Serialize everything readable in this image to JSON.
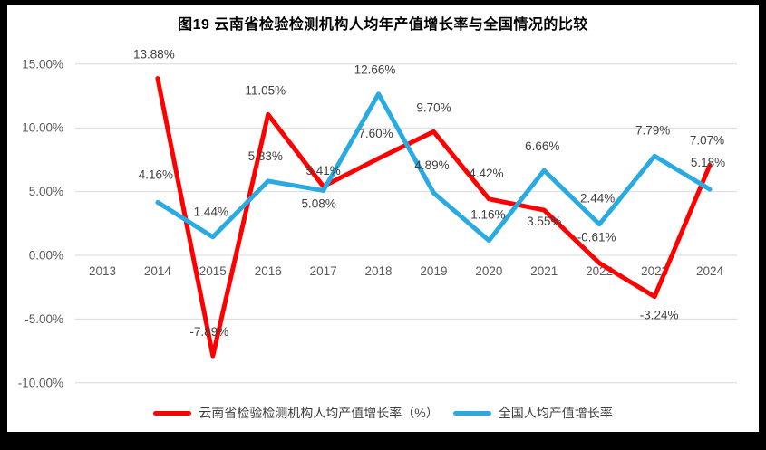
{
  "chart_data": {
    "type": "line",
    "title": "图19  云南省检验检测机构人均年产值增长率与全国情况的比较",
    "categories": [
      "2013",
      "2014",
      "2015",
      "2016",
      "2017",
      "2018",
      "2019",
      "2020",
      "2021",
      "2022",
      "2023",
      "2024"
    ],
    "y_axis": {
      "tick_labels": [
        "15.00%",
        "10.00%",
        "5.00%",
        "0.00%",
        "-5.00%",
        "-10.00%"
      ],
      "tick_values": [
        15,
        10,
        5,
        0,
        -5,
        -10
      ],
      "range": [
        -10,
        15
      ]
    },
    "grid": true,
    "legend_position": "bottom",
    "series": [
      {
        "name": "云南省检验检测机构人均产值增长率（%）",
        "color": "#FF0000",
        "values": [
          null,
          13.88,
          -7.89,
          11.05,
          5.41,
          7.6,
          9.7,
          4.42,
          3.55,
          -0.61,
          -3.24,
          7.07
        ],
        "labels": [
          "",
          "13.88%",
          "-7.89%",
          "11.05%",
          "5.41%",
          "7.60%",
          "9.70%",
          "4.42%",
          "3.55%",
          "-0.61%",
          "-3.24%",
          "7.07%"
        ],
        "label_offsets": [
          [
            0,
            0
          ],
          [
            -4,
            -22
          ],
          [
            -4,
            -22
          ],
          [
            -3,
            -22
          ],
          [
            0,
            -13
          ],
          [
            -3,
            -23
          ],
          [
            0,
            -22
          ],
          [
            -3,
            -24
          ],
          [
            0,
            17
          ],
          [
            -3,
            -24
          ],
          [
            5,
            25
          ],
          [
            -3,
            -23
          ]
        ]
      },
      {
        "name": "全国人均产值增长率",
        "color": "#29ABE2",
        "values": [
          null,
          4.16,
          1.44,
          5.83,
          5.08,
          12.66,
          4.89,
          1.16,
          6.66,
          2.44,
          7.79,
          5.18
        ],
        "labels": [
          "",
          "4.16%",
          "1.44%",
          "5.83%",
          "5.08%",
          "12.66%",
          "4.89%",
          "1.16%",
          "6.66%",
          "2.44%",
          "7.79%",
          "5.18%"
        ],
        "label_offsets": [
          [
            0,
            0
          ],
          [
            -2,
            -26
          ],
          [
            -2,
            -23
          ],
          [
            -3,
            -23
          ],
          [
            -5,
            19
          ],
          [
            -4,
            -22
          ],
          [
            -2,
            -26
          ],
          [
            -1,
            -24
          ],
          [
            -2,
            -22
          ],
          [
            -2,
            -24
          ],
          [
            -2,
            -24
          ],
          [
            -2,
            -25
          ]
        ]
      }
    ],
    "style_colors": {
      "title": "#000000",
      "data_label": "#404040",
      "axis_label": "#595959",
      "gridline": "#D9D9D9"
    }
  }
}
